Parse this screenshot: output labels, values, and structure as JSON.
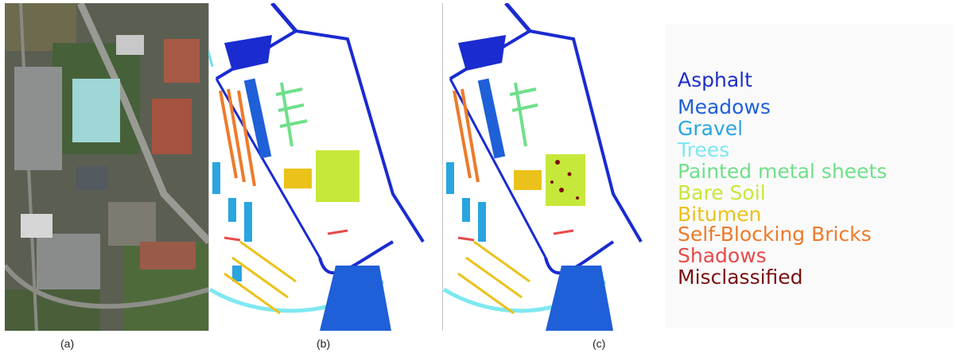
{
  "captions": {
    "a": "(a)",
    "b": "(b)",
    "c": "(c)"
  },
  "legend": [
    {
      "label": "Asphalt",
      "color": "#1e2fc8"
    },
    {
      "label": "Meadows",
      "color": "#1f5fd8"
    },
    {
      "label": "Gravel",
      "color": "#2aa5e0"
    },
    {
      "label": "Trees",
      "color": "#7fe8f0"
    },
    {
      "label": "Painted metal sheets",
      "color": "#6fe08a"
    },
    {
      "label": "Bare Soil",
      "color": "#c6e83a"
    },
    {
      "label": "Bitumen",
      "color": "#ebc21a"
    },
    {
      "label": "Self-Blocking Bricks",
      "color": "#ee7a2a"
    },
    {
      "label": "Shadows",
      "color": "#e84a4a"
    },
    {
      "label": "Misclassified",
      "color": "#7a1010"
    }
  ]
}
